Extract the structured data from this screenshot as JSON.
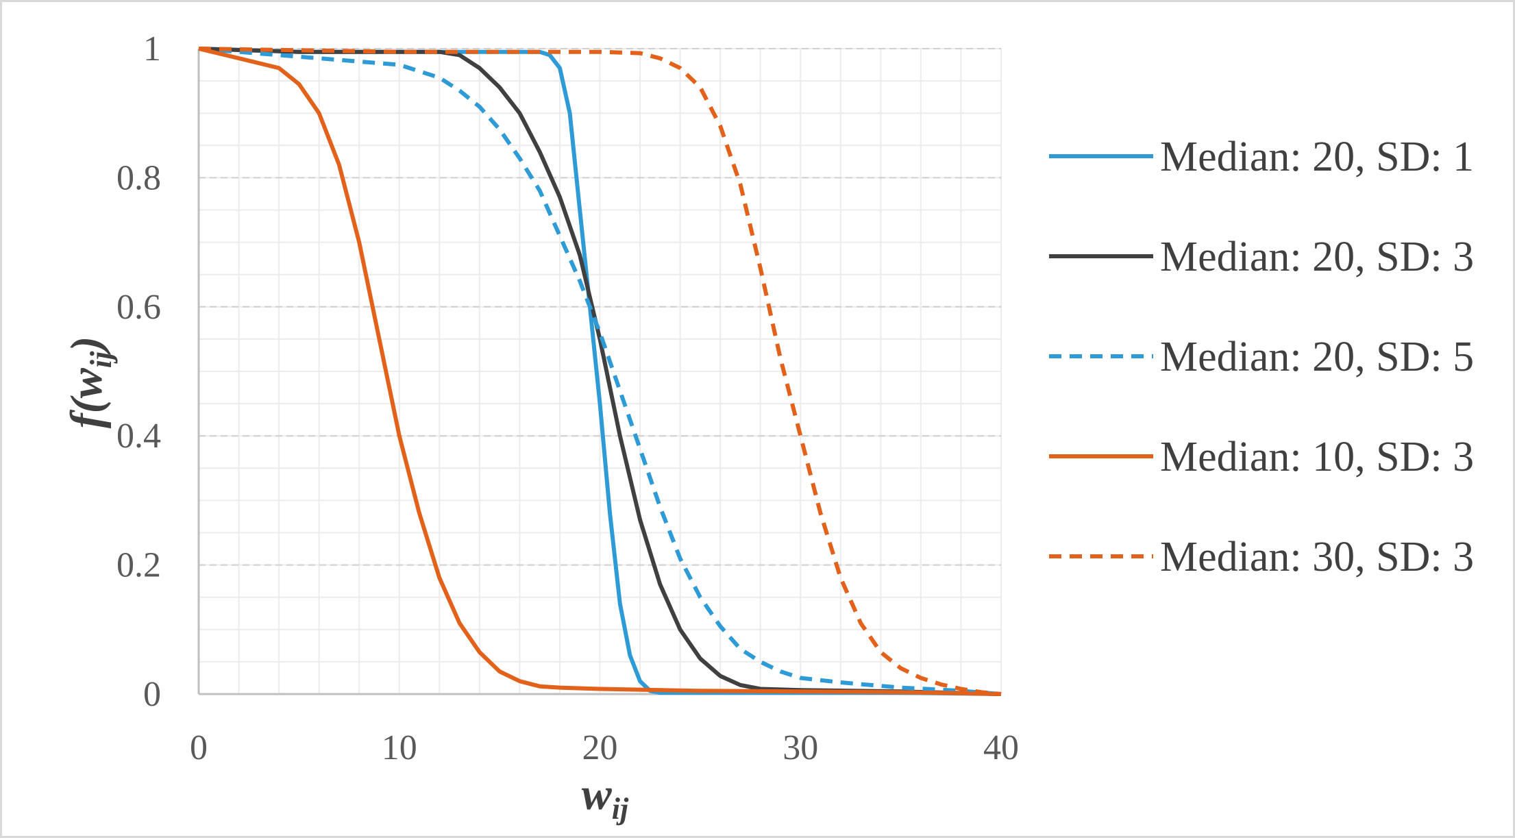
{
  "chart_data": {
    "type": "line",
    "title": "",
    "xlabel": {
      "base": "w",
      "sub": "ij"
    },
    "ylabel": {
      "prefix": "f(w",
      "sub": "ij",
      "suffix": ")"
    },
    "xlim": [
      0,
      40
    ],
    "ylim": [
      0,
      1
    ],
    "x_ticks": [
      0,
      10,
      20,
      30,
      40
    ],
    "x_tick_labels": [
      "0",
      "10",
      "20",
      "30",
      "40"
    ],
    "y_ticks": [
      0,
      0.2,
      0.4,
      0.6,
      0.8,
      1
    ],
    "y_tick_labels": [
      "0",
      "0.2",
      "0.4",
      "0.6",
      "0.8",
      "1"
    ],
    "grid": {
      "major": true,
      "minor": true,
      "x_minor_step": 2,
      "y_minor_step": 0.05
    },
    "legend_position": "right",
    "series": [
      {
        "name": "Median: 20, SD: 1",
        "color": "#2e9bd6",
        "dash": "solid",
        "x": [
          0,
          5,
          10,
          15,
          17,
          17.5,
          18,
          18.5,
          19,
          19.5,
          20,
          20.5,
          21,
          21.5,
          22,
          22.5,
          23,
          25,
          30,
          35,
          40
        ],
        "y": [
          1.0,
          0.995,
          0.995,
          0.995,
          0.995,
          0.99,
          0.97,
          0.9,
          0.75,
          0.6,
          0.45,
          0.28,
          0.14,
          0.06,
          0.02,
          0.005,
          0.002,
          0.002,
          0.002,
          0.002,
          0.0
        ]
      },
      {
        "name": "Median: 20, SD: 3",
        "color": "#404040",
        "dash": "solid",
        "x": [
          0,
          5,
          10,
          12,
          13,
          14,
          15,
          16,
          17,
          18,
          19,
          20,
          21,
          22,
          23,
          24,
          25,
          26,
          27,
          28,
          30,
          35,
          40
        ],
        "y": [
          1.0,
          0.995,
          0.995,
          0.995,
          0.99,
          0.97,
          0.94,
          0.9,
          0.84,
          0.77,
          0.68,
          0.55,
          0.4,
          0.27,
          0.17,
          0.1,
          0.055,
          0.028,
          0.014,
          0.008,
          0.006,
          0.004,
          0.0
        ]
      },
      {
        "name": "Median: 20, SD: 5",
        "color": "#2e9bd6",
        "dash": "dashed",
        "x": [
          0,
          2,
          4,
          6,
          8,
          10,
          11,
          12,
          13,
          14,
          15,
          16,
          17,
          18,
          19,
          20,
          21,
          22,
          23,
          24,
          25,
          26,
          27,
          28,
          29,
          30,
          32,
          35,
          38,
          40
        ],
        "y": [
          1.0,
          0.995,
          0.99,
          0.985,
          0.98,
          0.975,
          0.965,
          0.955,
          0.935,
          0.91,
          0.875,
          0.83,
          0.78,
          0.71,
          0.64,
          0.56,
          0.47,
          0.38,
          0.29,
          0.21,
          0.15,
          0.105,
          0.07,
          0.05,
          0.035,
          0.025,
          0.018,
          0.01,
          0.005,
          0.0
        ]
      },
      {
        "name": "Median: 10, SD: 3",
        "color": "#e2621b",
        "dash": "solid",
        "x": [
          0,
          2,
          4,
          5,
          6,
          7,
          8,
          9,
          10,
          11,
          12,
          13,
          14,
          15,
          16,
          17,
          18,
          20,
          25,
          30,
          35,
          40
        ],
        "y": [
          1.0,
          0.985,
          0.97,
          0.945,
          0.9,
          0.82,
          0.7,
          0.55,
          0.4,
          0.28,
          0.18,
          0.11,
          0.065,
          0.035,
          0.02,
          0.012,
          0.01,
          0.008,
          0.005,
          0.004,
          0.003,
          0.0
        ]
      },
      {
        "name": "Median: 30, SD: 3",
        "color": "#e2621b",
        "dash": "dashed",
        "x": [
          0,
          10,
          20,
          22,
          23,
          24,
          25,
          26,
          27,
          28,
          29,
          30,
          31,
          32,
          33,
          34,
          35,
          36,
          37,
          38,
          39,
          40
        ],
        "y": [
          1.0,
          0.995,
          0.995,
          0.993,
          0.985,
          0.97,
          0.94,
          0.88,
          0.79,
          0.66,
          0.52,
          0.4,
          0.28,
          0.18,
          0.11,
          0.065,
          0.04,
          0.025,
          0.015,
          0.008,
          0.003,
          0.0
        ]
      }
    ]
  }
}
